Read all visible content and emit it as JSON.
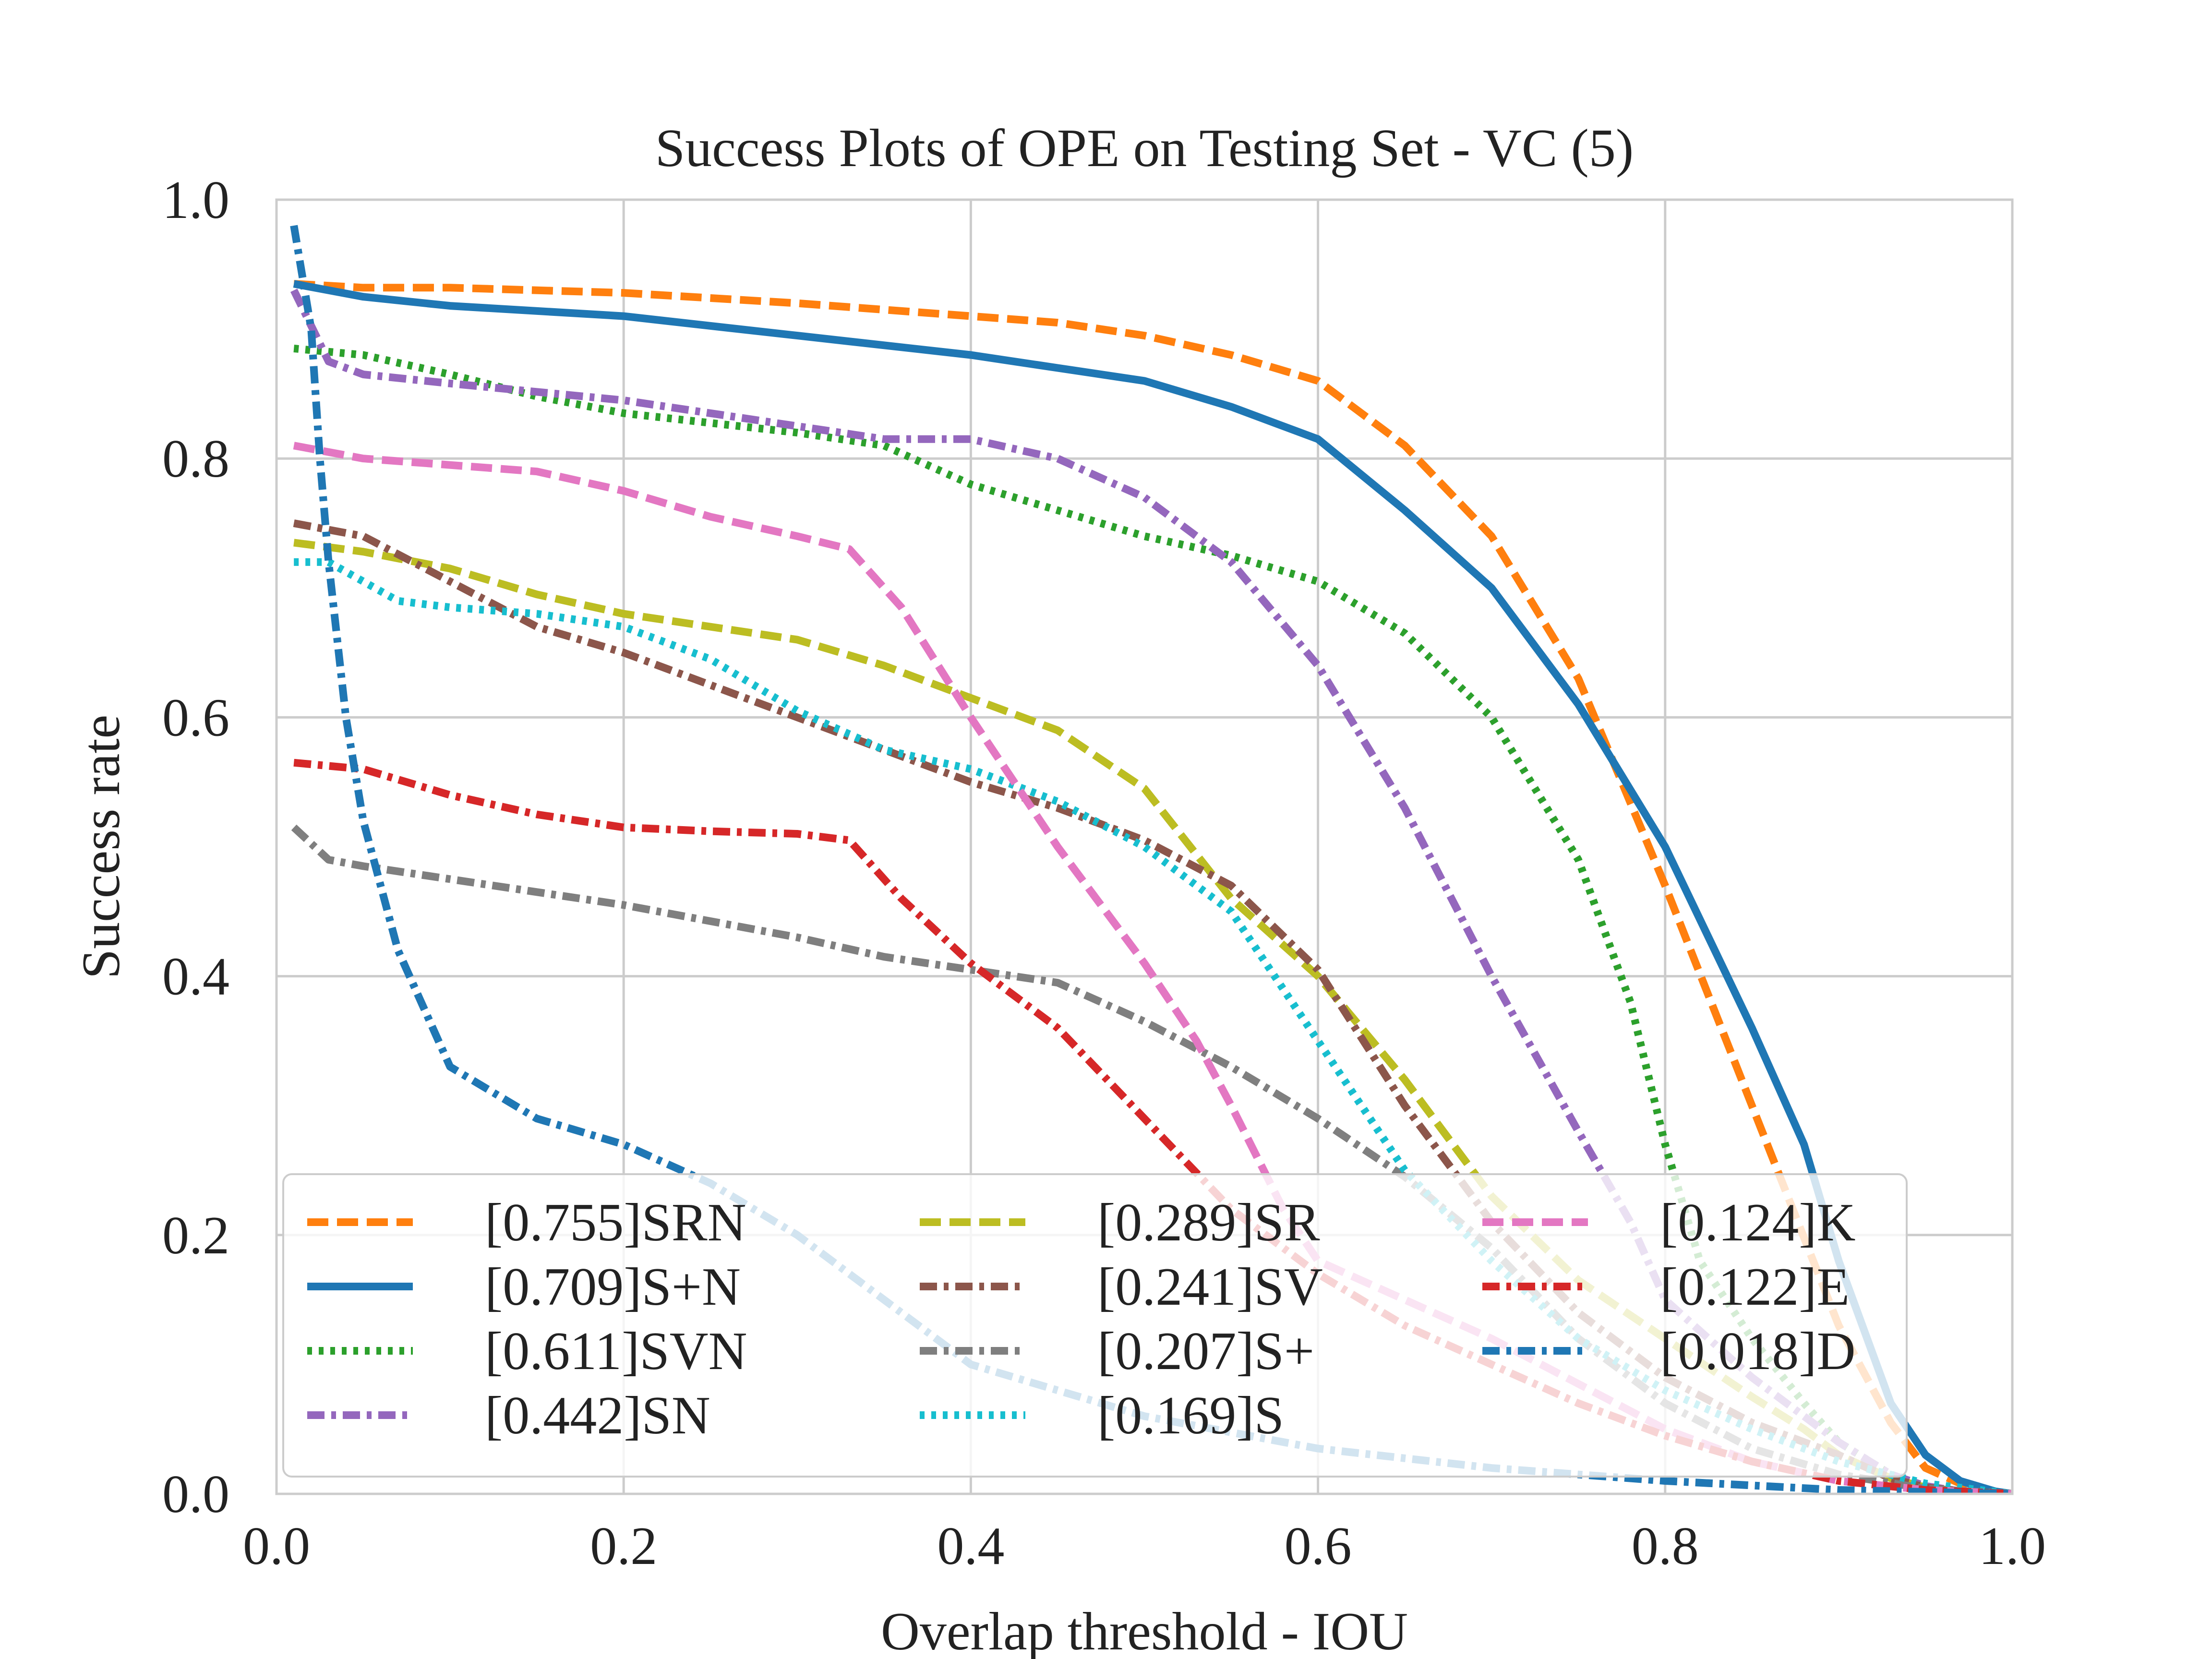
{
  "chart_data": {
    "type": "line",
    "title": "Success Plots of OPE on Testing Set - VC (5)",
    "xlabel": "Overlap threshold - IOU",
    "ylabel": "Success rate",
    "xlim": [
      0,
      1
    ],
    "ylim": [
      0,
      1
    ],
    "xticks": [
      0.0,
      0.2,
      0.4,
      0.6,
      0.8,
      1.0
    ],
    "yticks": [
      0.0,
      0.2,
      0.4,
      0.6,
      0.8,
      1.0
    ],
    "xtick_labels": [
      "0.0",
      "0.2",
      "0.4",
      "0.6",
      "0.8",
      "1.0"
    ],
    "ytick_labels": [
      "0.0",
      "0.2",
      "0.4",
      "0.6",
      "0.8",
      "1.0"
    ],
    "grid": true,
    "legend_position": "lower-left",
    "series": [
      {
        "name": "[0.755]SRN",
        "color": "#ff7f0e",
        "style": "dashed",
        "x": [
          0.01,
          0.05,
          0.1,
          0.2,
          0.3,
          0.4,
          0.45,
          0.5,
          0.55,
          0.6,
          0.65,
          0.7,
          0.75,
          0.8,
          0.85,
          0.9,
          0.93,
          0.95,
          0.97,
          0.99,
          1.0
        ],
        "y": [
          0.935,
          0.932,
          0.932,
          0.928,
          0.92,
          0.91,
          0.905,
          0.895,
          0.88,
          0.86,
          0.81,
          0.74,
          0.63,
          0.47,
          0.3,
          0.13,
          0.055,
          0.02,
          0.008,
          0.002,
          0.0
        ]
      },
      {
        "name": "[0.709]S+N",
        "color": "#1f77b4",
        "style": "solid",
        "x": [
          0.01,
          0.05,
          0.1,
          0.2,
          0.3,
          0.4,
          0.45,
          0.5,
          0.55,
          0.6,
          0.65,
          0.7,
          0.75,
          0.8,
          0.85,
          0.88,
          0.9,
          0.93,
          0.95,
          0.97,
          0.99,
          1.0
        ],
        "y": [
          0.935,
          0.925,
          0.918,
          0.91,
          0.895,
          0.88,
          0.87,
          0.86,
          0.84,
          0.815,
          0.76,
          0.7,
          0.61,
          0.5,
          0.36,
          0.27,
          0.18,
          0.07,
          0.03,
          0.01,
          0.002,
          0.0
        ]
      },
      {
        "name": "[0.611]SVN",
        "color": "#2ca02c",
        "style": "dotted",
        "x": [
          0.01,
          0.05,
          0.1,
          0.15,
          0.2,
          0.3,
          0.35,
          0.4,
          0.45,
          0.5,
          0.55,
          0.6,
          0.65,
          0.7,
          0.75,
          0.78,
          0.8,
          0.82,
          0.85,
          0.88,
          0.9,
          0.93,
          0.95,
          0.97,
          1.0
        ],
        "y": [
          0.885,
          0.88,
          0.865,
          0.848,
          0.835,
          0.82,
          0.81,
          0.78,
          0.76,
          0.74,
          0.725,
          0.705,
          0.665,
          0.6,
          0.49,
          0.38,
          0.27,
          0.18,
          0.12,
          0.07,
          0.04,
          0.015,
          0.006,
          0.002,
          0.0
        ]
      },
      {
        "name": "[0.442]SN",
        "color": "#9467bd",
        "style": "dashdot",
        "x": [
          0.01,
          0.03,
          0.05,
          0.1,
          0.2,
          0.3,
          0.35,
          0.4,
          0.45,
          0.5,
          0.55,
          0.6,
          0.65,
          0.7,
          0.75,
          0.78,
          0.8,
          0.85,
          0.9,
          0.93,
          0.95,
          0.97,
          1.0
        ],
        "y": [
          0.93,
          0.875,
          0.865,
          0.858,
          0.845,
          0.825,
          0.815,
          0.815,
          0.8,
          0.77,
          0.72,
          0.64,
          0.53,
          0.4,
          0.28,
          0.21,
          0.15,
          0.09,
          0.04,
          0.015,
          0.006,
          0.002,
          0.0
        ]
      },
      {
        "name": "[0.289]SR",
        "color": "#bcbd22",
        "style": "dashed",
        "x": [
          0.01,
          0.05,
          0.1,
          0.15,
          0.2,
          0.3,
          0.35,
          0.4,
          0.45,
          0.5,
          0.55,
          0.6,
          0.65,
          0.7,
          0.75,
          0.8,
          0.85,
          0.88,
          0.9,
          0.93,
          0.95,
          0.97,
          1.0
        ],
        "y": [
          0.735,
          0.728,
          0.715,
          0.695,
          0.68,
          0.66,
          0.64,
          0.615,
          0.59,
          0.545,
          0.46,
          0.4,
          0.32,
          0.23,
          0.165,
          0.12,
          0.075,
          0.05,
          0.03,
          0.012,
          0.005,
          0.002,
          0.0
        ]
      },
      {
        "name": "[0.241]SV",
        "color": "#8c564b",
        "style": "dashdot",
        "x": [
          0.01,
          0.05,
          0.1,
          0.15,
          0.2,
          0.25,
          0.3,
          0.35,
          0.4,
          0.45,
          0.5,
          0.55,
          0.6,
          0.65,
          0.7,
          0.75,
          0.8,
          0.85,
          0.9,
          0.93,
          0.95,
          0.97,
          1.0
        ],
        "y": [
          0.75,
          0.74,
          0.705,
          0.67,
          0.65,
          0.625,
          0.6,
          0.575,
          0.55,
          0.53,
          0.505,
          0.47,
          0.405,
          0.3,
          0.21,
          0.14,
          0.09,
          0.055,
          0.03,
          0.012,
          0.005,
          0.002,
          0.0
        ]
      },
      {
        "name": "[0.207]S+",
        "color": "#7f7f7f",
        "style": "dashdot",
        "x": [
          0.01,
          0.03,
          0.05,
          0.1,
          0.2,
          0.3,
          0.35,
          0.4,
          0.45,
          0.5,
          0.55,
          0.6,
          0.65,
          0.7,
          0.75,
          0.8,
          0.85,
          0.9,
          0.95,
          1.0
        ],
        "y": [
          0.515,
          0.49,
          0.485,
          0.475,
          0.455,
          0.43,
          0.415,
          0.405,
          0.395,
          0.365,
          0.33,
          0.29,
          0.245,
          0.19,
          0.12,
          0.07,
          0.035,
          0.015,
          0.004,
          0.0
        ]
      },
      {
        "name": "[0.169]S",
        "color": "#17becf",
        "style": "dotted",
        "x": [
          0.01,
          0.03,
          0.07,
          0.1,
          0.15,
          0.2,
          0.25,
          0.3,
          0.35,
          0.4,
          0.45,
          0.5,
          0.55,
          0.6,
          0.65,
          0.7,
          0.75,
          0.8,
          0.85,
          0.9,
          0.95,
          1.0
        ],
        "y": [
          0.72,
          0.72,
          0.69,
          0.685,
          0.68,
          0.67,
          0.645,
          0.605,
          0.575,
          0.56,
          0.535,
          0.5,
          0.45,
          0.35,
          0.25,
          0.18,
          0.12,
          0.08,
          0.05,
          0.025,
          0.008,
          0.0
        ]
      },
      {
        "name": "[0.124]K",
        "color": "#e377c2",
        "style": "dashed",
        "x": [
          0.01,
          0.05,
          0.1,
          0.15,
          0.2,
          0.25,
          0.3,
          0.33,
          0.36,
          0.4,
          0.45,
          0.5,
          0.53,
          0.55,
          0.58,
          0.6,
          0.65,
          0.7,
          0.75,
          0.8,
          0.85,
          0.9,
          0.95,
          1.0
        ],
        "y": [
          0.81,
          0.8,
          0.795,
          0.79,
          0.775,
          0.755,
          0.74,
          0.73,
          0.685,
          0.6,
          0.5,
          0.41,
          0.35,
          0.3,
          0.22,
          0.18,
          0.15,
          0.12,
          0.085,
          0.05,
          0.025,
          0.01,
          0.003,
          0.0
        ]
      },
      {
        "name": "[0.122]E",
        "color": "#d62728",
        "style": "dashdot",
        "x": [
          0.01,
          0.05,
          0.1,
          0.15,
          0.2,
          0.25,
          0.3,
          0.33,
          0.36,
          0.4,
          0.45,
          0.5,
          0.55,
          0.6,
          0.65,
          0.7,
          0.75,
          0.8,
          0.85,
          0.9,
          0.95,
          1.0
        ],
        "y": [
          0.565,
          0.56,
          0.54,
          0.525,
          0.515,
          0.512,
          0.51,
          0.505,
          0.46,
          0.41,
          0.36,
          0.29,
          0.22,
          0.17,
          0.13,
          0.1,
          0.07,
          0.045,
          0.025,
          0.01,
          0.003,
          0.0
        ]
      },
      {
        "name": "[0.018]D",
        "color": "#1f77b4",
        "style": "dashdot",
        "x": [
          0.01,
          0.02,
          0.025,
          0.03,
          0.04,
          0.05,
          0.07,
          0.1,
          0.15,
          0.2,
          0.25,
          0.3,
          0.35,
          0.4,
          0.5,
          0.6,
          0.7,
          0.8,
          0.9,
          1.0
        ],
        "y": [
          0.98,
          0.9,
          0.8,
          0.72,
          0.6,
          0.52,
          0.42,
          0.33,
          0.29,
          0.27,
          0.24,
          0.2,
          0.15,
          0.1,
          0.06,
          0.035,
          0.02,
          0.01,
          0.003,
          0.0
        ]
      }
    ]
  }
}
